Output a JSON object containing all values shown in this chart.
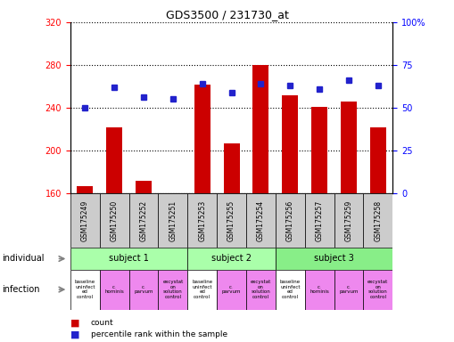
{
  "title": "GDS3500 / 231730_at",
  "samples": [
    "GSM175249",
    "GSM175250",
    "GSM175252",
    "GSM175251",
    "GSM175253",
    "GSM175255",
    "GSM175254",
    "GSM175256",
    "GSM175257",
    "GSM175259",
    "GSM175258"
  ],
  "counts": [
    167,
    222,
    172,
    158,
    262,
    207,
    280,
    252,
    241,
    246,
    222
  ],
  "percentile_ranks": [
    50,
    62,
    56,
    55,
    64,
    59,
    64,
    63,
    61,
    66,
    63
  ],
  "ylim_left": [
    160,
    320
  ],
  "ylim_right": [
    0,
    100
  ],
  "yticks_left": [
    160,
    200,
    240,
    280,
    320
  ],
  "yticks_right": [
    0,
    25,
    50,
    75,
    100
  ],
  "subjects": [
    {
      "label": "subject 1",
      "start": 0,
      "end": 3
    },
    {
      "label": "subject 2",
      "start": 4,
      "end": 6
    },
    {
      "label": "subject 3",
      "start": 7,
      "end": 10
    }
  ],
  "infections": [
    {
      "label": "baseline\nuninfect\ned\ncontrol",
      "col": 0,
      "white": true
    },
    {
      "label": "c.\nhominis",
      "col": 1,
      "white": false
    },
    {
      "label": "c.\nparvum",
      "col": 2,
      "white": false
    },
    {
      "label": "excystat\non\nsolution\ncontrol",
      "col": 3,
      "white": false
    },
    {
      "label": "baseline\nuninfect\ned\ncontrol",
      "col": 4,
      "white": true
    },
    {
      "label": "c.\nparvum",
      "col": 5,
      "white": false
    },
    {
      "label": "excystat\non\nsolution\ncontrol",
      "col": 6,
      "white": false
    },
    {
      "label": "baseline\nuninfect\ned\ncontrol",
      "col": 7,
      "white": true
    },
    {
      "label": "c.\nhominis",
      "col": 8,
      "white": false
    },
    {
      "label": "c.\nparvum",
      "col": 9,
      "white": false
    },
    {
      "label": "excystat\non\nsolution\ncontrol",
      "col": 10,
      "white": false
    }
  ],
  "bar_color": "#cc0000",
  "dot_color": "#2222cc",
  "bar_bottom": 160,
  "sample_bg_color": "#cccccc",
  "subject_color": "#aaffaa",
  "subject3_color": "#88ee88",
  "infection_white": "#ffffff",
  "infection_pink": "#ee88ee",
  "label_individual": "individual",
  "label_infection": "infection",
  "legend_count": "count",
  "legend_percentile": "percentile rank within the sample"
}
